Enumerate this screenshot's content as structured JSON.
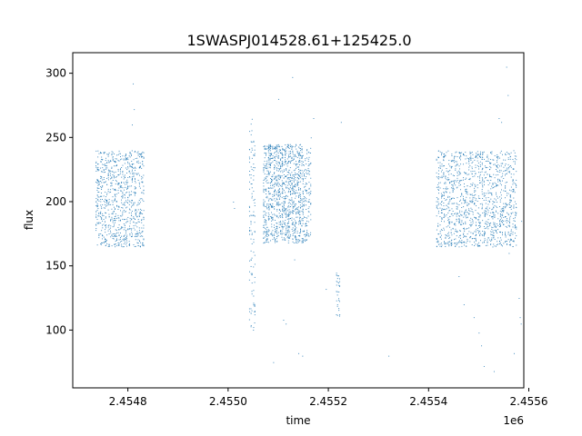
{
  "chart_data": {
    "type": "scatter",
    "title": "1SWASPJ014528.61+125425.0",
    "xlabel": "time",
    "ylabel": "flux",
    "x_offset_label": "1e6",
    "xlim": [
      2454690,
      2455590
    ],
    "ylim": [
      55,
      316
    ],
    "x_ticks": [
      {
        "value": 2454800,
        "label": "2.4548"
      },
      {
        "value": 2455000,
        "label": "2.4550"
      },
      {
        "value": 2455200,
        "label": "2.4552"
      },
      {
        "value": 2455400,
        "label": "2.4554"
      },
      {
        "value": 2455600,
        "label": "2.4556"
      }
    ],
    "y_ticks": [
      {
        "value": 100,
        "label": "100"
      },
      {
        "value": 150,
        "label": "150"
      },
      {
        "value": 200,
        "label": "200"
      },
      {
        "value": 250,
        "label": "250"
      },
      {
        "value": 300,
        "label": "300"
      }
    ],
    "grid": false,
    "marker_color": "#1f77b4",
    "clusters": [
      {
        "x_range": [
          2454735,
          2454832
        ],
        "core": [
          165,
          240
        ],
        "n": 900
      },
      {
        "x_range": [
          2455042,
          2455054
        ],
        "core": [
          100,
          265
        ],
        "n": 120
      },
      {
        "x_range": [
          2455070,
          2455150
        ],
        "core": [
          168,
          245
        ],
        "n": 1100
      },
      {
        "x_range": [
          2455150,
          2455165
        ],
        "core": [
          168,
          242
        ],
        "n": 120
      },
      {
        "x_range": [
          2455215,
          2455223
        ],
        "core": [
          110,
          145
        ],
        "n": 30
      },
      {
        "x_range": [
          2455415,
          2455575
        ],
        "core": [
          165,
          240
        ],
        "n": 1300
      }
    ],
    "points": [
      [
        2454810,
        292
      ],
      [
        2454812,
        272
      ],
      [
        2454808,
        260
      ],
      [
        2455010,
        200
      ],
      [
        2455012,
        195
      ],
      [
        2455100,
        280
      ],
      [
        2455125,
        232
      ],
      [
        2455128,
        297
      ],
      [
        2455165,
        250
      ],
      [
        2455170,
        265
      ],
      [
        2455225,
        262
      ],
      [
        2455090,
        75
      ],
      [
        2455110,
        108
      ],
      [
        2455115,
        105
      ],
      [
        2455132,
        155
      ],
      [
        2455140,
        82
      ],
      [
        2455148,
        80
      ],
      [
        2455195,
        132
      ],
      [
        2455320,
        80
      ],
      [
        2455435,
        190
      ],
      [
        2455460,
        142
      ],
      [
        2455470,
        120
      ],
      [
        2455490,
        110
      ],
      [
        2455500,
        98
      ],
      [
        2455505,
        88
      ],
      [
        2455510,
        72
      ],
      [
        2455530,
        68
      ],
      [
        2455540,
        265
      ],
      [
        2455545,
        262
      ],
      [
        2455555,
        305
      ],
      [
        2455558,
        283
      ],
      [
        2455560,
        160
      ],
      [
        2455570,
        82
      ],
      [
        2455580,
        125
      ],
      [
        2455582,
        110
      ],
      [
        2455584,
        105
      ],
      [
        2455585,
        185
      ]
    ]
  }
}
